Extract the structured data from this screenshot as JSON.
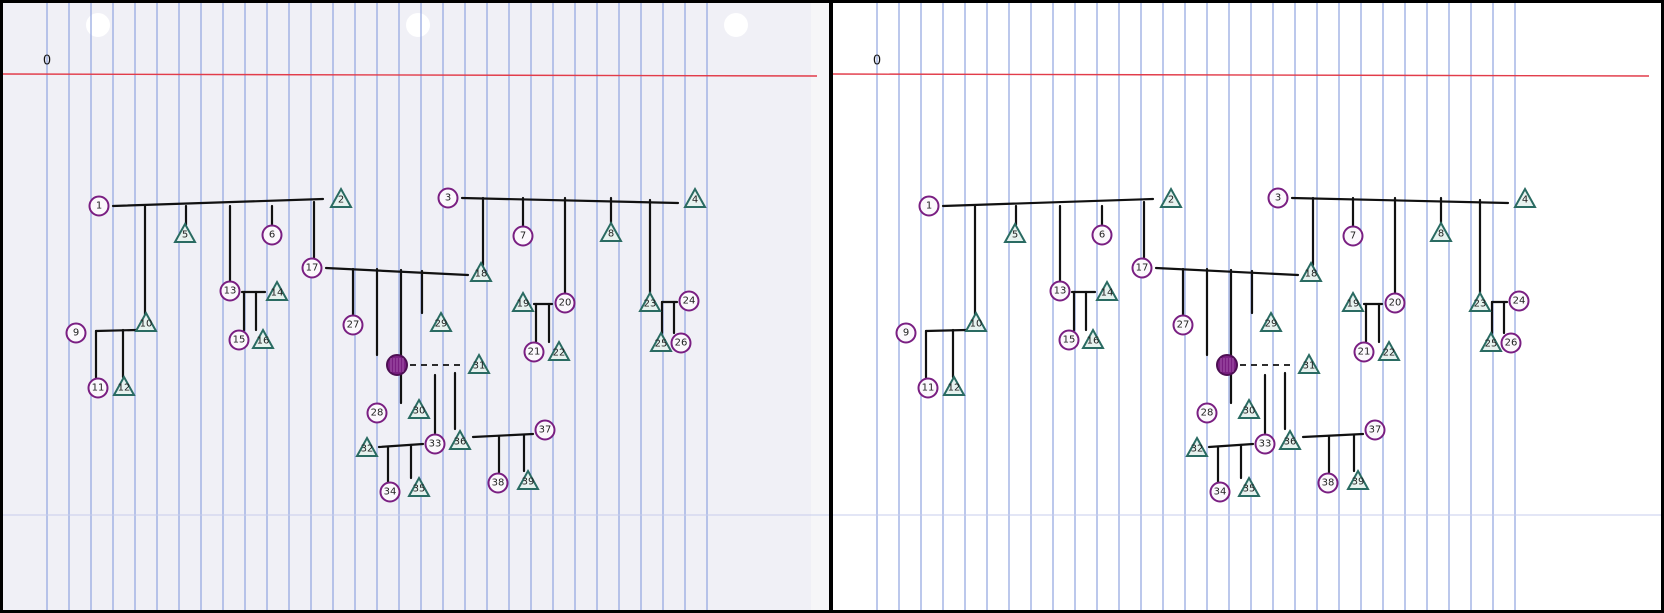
{
  "corner_marks": {
    "left": "0",
    "right": "0"
  },
  "colors": {
    "female_stroke": "#7a1f82",
    "male_stroke": "#2a6b62",
    "ruling_blue": "#8fa3e0",
    "margin_red": "#e23c4a"
  },
  "panels": [
    {
      "id": "left",
      "variant": "scan"
    },
    {
      "id": "right",
      "variant": "clean"
    }
  ],
  "individuals": [
    {
      "id": "1",
      "shape": "circle"
    },
    {
      "id": "2",
      "shape": "triangle"
    },
    {
      "id": "3",
      "shape": "circle"
    },
    {
      "id": "4",
      "shape": "triangle"
    },
    {
      "id": "5",
      "shape": "triangle"
    },
    {
      "id": "6",
      "shape": "circle"
    },
    {
      "id": "7",
      "shape": "circle"
    },
    {
      "id": "8",
      "shape": "triangle"
    },
    {
      "id": "9",
      "shape": "circle"
    },
    {
      "id": "10",
      "shape": "triangle"
    },
    {
      "id": "11",
      "shape": "circle"
    },
    {
      "id": "12",
      "shape": "triangle"
    },
    {
      "id": "13",
      "shape": "circle"
    },
    {
      "id": "14",
      "shape": "triangle"
    },
    {
      "id": "15",
      "shape": "circle"
    },
    {
      "id": "16",
      "shape": "triangle"
    },
    {
      "id": "17",
      "shape": "circle"
    },
    {
      "id": "18",
      "shape": "triangle"
    },
    {
      "id": "19",
      "shape": "triangle"
    },
    {
      "id": "20",
      "shape": "circle"
    },
    {
      "id": "21",
      "shape": "circle"
    },
    {
      "id": "22",
      "shape": "triangle"
    },
    {
      "id": "23",
      "shape": "triangle"
    },
    {
      "id": "24",
      "shape": "circle"
    },
    {
      "id": "25",
      "shape": "triangle"
    },
    {
      "id": "26",
      "shape": "circle"
    },
    {
      "id": "27",
      "shape": "circle"
    },
    {
      "id": "28",
      "shape": "circle"
    },
    {
      "id": "29",
      "shape": "triangle"
    },
    {
      "id": "30",
      "shape": "triangle"
    },
    {
      "id": "31",
      "shape": "triangle"
    },
    {
      "id": "32",
      "shape": "triangle"
    },
    {
      "id": "33",
      "shape": "circle"
    },
    {
      "id": "34",
      "shape": "circle"
    },
    {
      "id": "35",
      "shape": "triangle"
    },
    {
      "id": "36",
      "shape": "triangle"
    },
    {
      "id": "37",
      "shape": "circle"
    },
    {
      "id": "38",
      "shape": "circle"
    },
    {
      "id": "39",
      "shape": "triangle"
    },
    {
      "id": "filled",
      "shape": "filled-circle"
    }
  ],
  "relationships": [
    {
      "type": "union",
      "partners": [
        "1",
        "2"
      ]
    },
    {
      "type": "union",
      "partners": [
        "3",
        "4"
      ]
    },
    {
      "type": "union",
      "partners": [
        "17",
        "18"
      ]
    },
    {
      "type": "union",
      "partners": [
        "9",
        "10"
      ]
    },
    {
      "type": "union",
      "partners": [
        "13",
        "14"
      ]
    },
    {
      "type": "union",
      "partners": [
        "19",
        "20"
      ]
    },
    {
      "type": "union",
      "partners": [
        "23",
        "24"
      ]
    },
    {
      "type": "union",
      "partners": [
        "32",
        "33"
      ]
    },
    {
      "type": "union",
      "partners": [
        "36",
        "37"
      ]
    },
    {
      "type": "dashed",
      "partners": [
        "filled",
        "31"
      ]
    }
  ]
}
